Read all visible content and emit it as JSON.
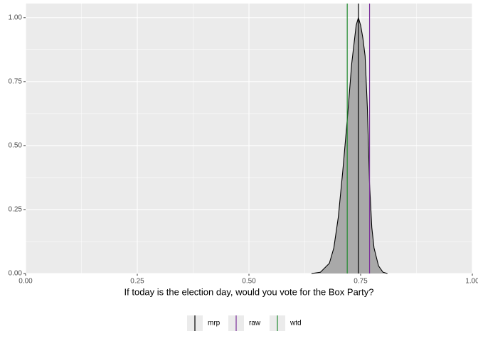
{
  "chart_data": {
    "type": "density",
    "xlabel": "If today is the election day, would you vote for the Box Party?",
    "density": {
      "x": [
        0.64,
        0.66,
        0.68,
        0.69,
        0.7,
        0.71,
        0.72,
        0.73,
        0.74,
        0.745,
        0.75,
        0.755,
        0.76,
        0.765,
        0.77,
        0.775,
        0.78,
        0.79,
        0.8,
        0.81
      ],
      "y": [
        0,
        0.005,
        0.04,
        0.1,
        0.22,
        0.4,
        0.6,
        0.82,
        0.97,
        1.0,
        0.97,
        0.92,
        0.85,
        0.65,
        0.35,
        0.18,
        0.1,
        0.03,
        0.005,
        0
      ],
      "fill": "#a9a9a9",
      "color": "#000000"
    },
    "vlines": [
      {
        "name": "mrp",
        "color": "#000000",
        "x": 0.745
      },
      {
        "name": "raw",
        "color": "#7b2f9a",
        "x": 0.77
      },
      {
        "name": "wtd",
        "color": "#1f8a2e",
        "x": 0.72
      }
    ],
    "xlim": [
      0,
      1
    ],
    "ylim": [
      0,
      1.055
    ],
    "xticks": [
      {
        "value": 0,
        "label": "0.00"
      },
      {
        "value": 0.25,
        "label": "0.25"
      },
      {
        "value": 0.5,
        "label": "0.50"
      },
      {
        "value": 0.75,
        "label": "0.75"
      },
      {
        "value": 1,
        "label": "1.00"
      }
    ],
    "yticks": [
      {
        "value": 0,
        "label": "0.00"
      },
      {
        "value": 0.25,
        "label": "0.25"
      },
      {
        "value": 0.5,
        "label": "0.50"
      },
      {
        "value": 0.75,
        "label": "0.75"
      },
      {
        "value": 1,
        "label": "1.00"
      }
    ],
    "xminor": [
      0.125,
      0.375,
      0.625,
      0.875
    ],
    "yminor": [
      0.125,
      0.375,
      0.625,
      0.875
    ],
    "grid": true,
    "legend": "bottom"
  }
}
